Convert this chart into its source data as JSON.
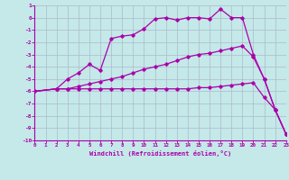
{
  "xlabel": "Windchill (Refroidissement éolien,°C)",
  "background_color": "#c5e8e8",
  "line_color": "#aa00aa",
  "grid_color": "#aabbcc",
  "xlim": [
    0,
    23
  ],
  "ylim": [
    -10,
    1
  ],
  "xticks": [
    0,
    1,
    2,
    3,
    4,
    5,
    6,
    7,
    8,
    9,
    10,
    11,
    12,
    13,
    14,
    15,
    16,
    17,
    18,
    19,
    20,
    21,
    22,
    23
  ],
  "yticks": [
    1,
    0,
    -1,
    -2,
    -3,
    -4,
    -5,
    -6,
    -7,
    -8,
    -9,
    -10
  ],
  "line1_x": [
    0,
    2,
    3,
    4,
    5,
    6,
    7,
    8,
    9,
    10,
    11,
    12,
    13,
    14,
    15,
    16,
    17,
    18,
    19,
    20,
    21,
    22,
    23
  ],
  "line1_y": [
    -6,
    -5.8,
    -5.8,
    -5.8,
    -5.8,
    -5.8,
    -5.8,
    -5.8,
    -5.8,
    -5.8,
    -5.8,
    -5.8,
    -5.8,
    -5.8,
    -5.7,
    -5.7,
    -5.6,
    -5.5,
    -5.4,
    -5.3,
    -6.5,
    -7.5,
    -9.5
  ],
  "line2_x": [
    0,
    2,
    3,
    4,
    5,
    6,
    7,
    8,
    9,
    10,
    11,
    12,
    13,
    14,
    15,
    16,
    17,
    18,
    19,
    20,
    21,
    22,
    23
  ],
  "line2_y": [
    -6,
    -5.8,
    -5.0,
    -4.5,
    -3.8,
    -4.3,
    -1.7,
    -1.5,
    -1.4,
    -0.9,
    -0.1,
    0.0,
    -0.2,
    0.0,
    0.0,
    -0.1,
    0.7,
    0.0,
    0.0,
    -3.0,
    -5.0,
    -7.5,
    -9.5
  ],
  "line3_x": [
    0,
    2,
    3,
    4,
    5,
    6,
    7,
    8,
    9,
    10,
    11,
    12,
    13,
    14,
    15,
    16,
    17,
    18,
    19,
    20,
    21,
    22,
    23
  ],
  "line3_y": [
    -6,
    -5.8,
    -5.8,
    -5.6,
    -5.4,
    -5.2,
    -5.0,
    -4.8,
    -4.5,
    -4.2,
    -4.0,
    -3.8,
    -3.5,
    -3.2,
    -3.0,
    -2.9,
    -2.7,
    -2.5,
    -2.3,
    -3.2,
    -5.0,
    -7.5,
    -9.5
  ]
}
